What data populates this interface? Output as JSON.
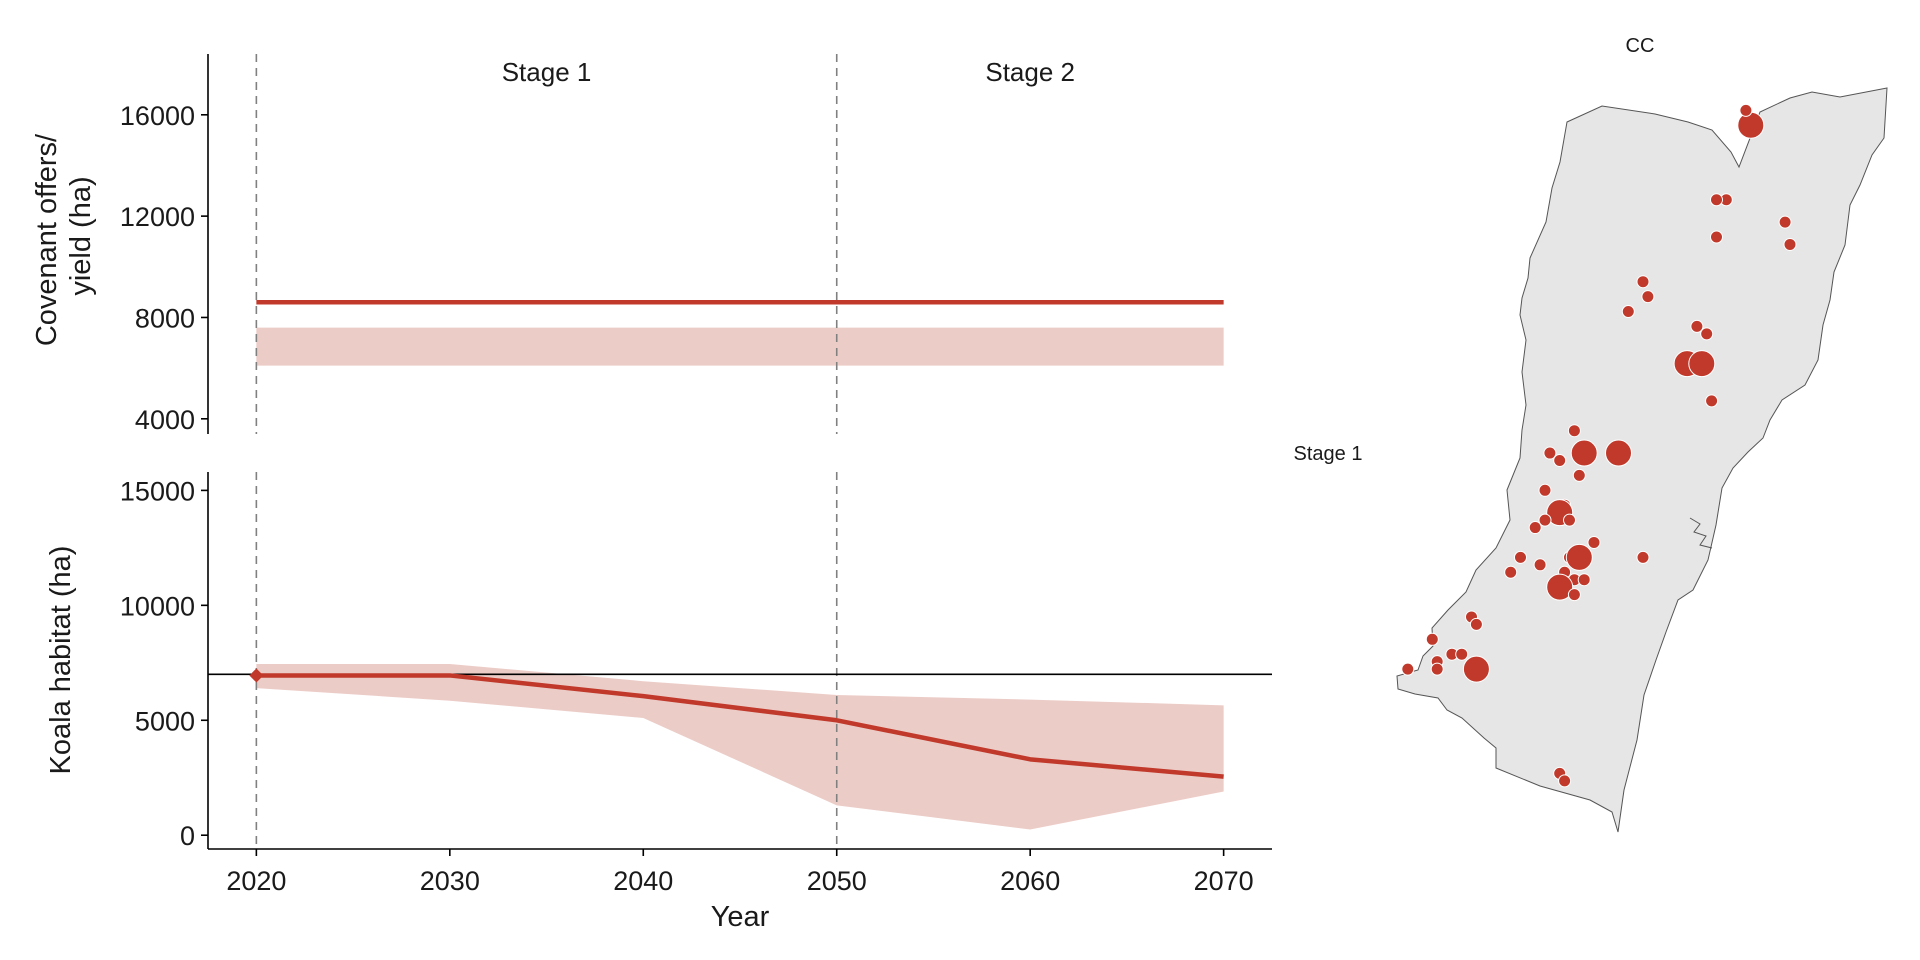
{
  "colors": {
    "series": "#c0392b",
    "band": "#ecccc7",
    "map_fill": "#e6e6e6",
    "map_stroke": "#555555",
    "reference_line": "#000000",
    "stage_divider": "#808080"
  },
  "chart_data": [
    {
      "type": "line",
      "ylabel": "Covenant offers/\nyield (ha)",
      "ylabel_lines": [
        "Covenant offers/",
        "yield (ha)"
      ],
      "y_ticks": [
        4000,
        8000,
        12000,
        16000
      ],
      "y_tick_labels": [
        "4000",
        "8000",
        "12000",
        "16000"
      ],
      "ylim": [
        3400,
        18400
      ],
      "x_ticks": [
        2020,
        2030,
        2040,
        2050,
        2060,
        2070
      ],
      "xlim": [
        2017.5,
        2072.5
      ],
      "stage_lines": [
        2020,
        2050
      ],
      "stage_labels": [
        "Stage 1",
        "Stage 2"
      ],
      "stage_label_x": [
        2035,
        2060
      ],
      "series": [
        {
          "x": [
            2020,
            2070
          ],
          "y": [
            8600,
            8600
          ]
        }
      ],
      "band": {
        "x": [
          2020,
          2070
        ],
        "lower": [
          6100,
          6100
        ],
        "upper": [
          7600,
          7600
        ]
      },
      "grid": false
    },
    {
      "type": "line",
      "xlabel": "Year",
      "ylabel": "Koala habitat (ha)",
      "y_ticks": [
        0,
        5000,
        10000,
        15000
      ],
      "y_tick_labels": [
        "0",
        "5000",
        "10000",
        "15000"
      ],
      "ylim": [
        -600,
        15800
      ],
      "x_ticks": [
        2020,
        2030,
        2040,
        2050,
        2060,
        2070
      ],
      "x_tick_labels": [
        "2020",
        "2030",
        "2040",
        "2050",
        "2060",
        "2070"
      ],
      "xlim": [
        2017.5,
        2072.5
      ],
      "stage_lines": [
        2020,
        2050
      ],
      "reference_y": 7000,
      "series": [
        {
          "x": [
            2020,
            2030,
            2040,
            2050,
            2060,
            2070
          ],
          "y": [
            6950,
            6950,
            6050,
            5000,
            3300,
            2550
          ]
        }
      ],
      "start_marker": {
        "x": 2020,
        "y": 6950
      },
      "band": {
        "x": [
          2020,
          2030,
          2040,
          2050,
          2060,
          2070
        ],
        "lower": [
          6400,
          5850,
          5100,
          1300,
          250,
          1900
        ],
        "upper": [
          7450,
          7450,
          6700,
          6100,
          5900,
          5650
        ]
      },
      "grid": false
    },
    {
      "type": "scatter",
      "title": "CC",
      "row_label": "Stage 1",
      "marks": "proportional circles of covenant offers over a regional map",
      "points": [
        {
          "x": 0.72,
          "y": 0.05,
          "size": 2
        },
        {
          "x": 0.71,
          "y": 0.03,
          "size": 1
        },
        {
          "x": 0.67,
          "y": 0.15,
          "size": 1
        },
        {
          "x": 0.65,
          "y": 0.15,
          "size": 1
        },
        {
          "x": 0.65,
          "y": 0.2,
          "size": 1
        },
        {
          "x": 0.79,
          "y": 0.18,
          "size": 1
        },
        {
          "x": 0.8,
          "y": 0.21,
          "size": 1
        },
        {
          "x": 0.5,
          "y": 0.26,
          "size": 1
        },
        {
          "x": 0.51,
          "y": 0.28,
          "size": 1
        },
        {
          "x": 0.47,
          "y": 0.3,
          "size": 1
        },
        {
          "x": 0.61,
          "y": 0.32,
          "size": 1
        },
        {
          "x": 0.63,
          "y": 0.33,
          "size": 1
        },
        {
          "x": 0.59,
          "y": 0.37,
          "size": 2
        },
        {
          "x": 0.62,
          "y": 0.37,
          "size": 2
        },
        {
          "x": 0.64,
          "y": 0.42,
          "size": 1
        },
        {
          "x": 0.36,
          "y": 0.46,
          "size": 1
        },
        {
          "x": 0.38,
          "y": 0.49,
          "size": 2
        },
        {
          "x": 0.45,
          "y": 0.49,
          "size": 2
        },
        {
          "x": 0.31,
          "y": 0.49,
          "size": 1
        },
        {
          "x": 0.33,
          "y": 0.5,
          "size": 1
        },
        {
          "x": 0.37,
          "y": 0.52,
          "size": 1
        },
        {
          "x": 0.3,
          "y": 0.54,
          "size": 1
        },
        {
          "x": 0.34,
          "y": 0.56,
          "size": 1
        },
        {
          "x": 0.33,
          "y": 0.57,
          "size": 2
        },
        {
          "x": 0.35,
          "y": 0.58,
          "size": 1
        },
        {
          "x": 0.3,
          "y": 0.58,
          "size": 1
        },
        {
          "x": 0.28,
          "y": 0.59,
          "size": 1
        },
        {
          "x": 0.4,
          "y": 0.61,
          "size": 1
        },
        {
          "x": 0.35,
          "y": 0.63,
          "size": 1
        },
        {
          "x": 0.37,
          "y": 0.63,
          "size": 2
        },
        {
          "x": 0.34,
          "y": 0.65,
          "size": 1
        },
        {
          "x": 0.29,
          "y": 0.64,
          "size": 1
        },
        {
          "x": 0.25,
          "y": 0.63,
          "size": 1
        },
        {
          "x": 0.23,
          "y": 0.65,
          "size": 1
        },
        {
          "x": 0.36,
          "y": 0.66,
          "size": 1
        },
        {
          "x": 0.38,
          "y": 0.66,
          "size": 1
        },
        {
          "x": 0.33,
          "y": 0.67,
          "size": 2
        },
        {
          "x": 0.36,
          "y": 0.68,
          "size": 1
        },
        {
          "x": 0.5,
          "y": 0.63,
          "size": 1
        },
        {
          "x": 0.15,
          "y": 0.71,
          "size": 1
        },
        {
          "x": 0.16,
          "y": 0.72,
          "size": 1
        },
        {
          "x": 0.07,
          "y": 0.74,
          "size": 1
        },
        {
          "x": 0.11,
          "y": 0.76,
          "size": 1
        },
        {
          "x": 0.08,
          "y": 0.77,
          "size": 1
        },
        {
          "x": 0.13,
          "y": 0.76,
          "size": 1
        },
        {
          "x": 0.16,
          "y": 0.78,
          "size": 2
        },
        {
          "x": 0.02,
          "y": 0.78,
          "size": 1
        },
        {
          "x": 0.08,
          "y": 0.78,
          "size": 1
        },
        {
          "x": 0.33,
          "y": 0.92,
          "size": 1
        },
        {
          "x": 0.34,
          "y": 0.93,
          "size": 1
        }
      ]
    }
  ]
}
